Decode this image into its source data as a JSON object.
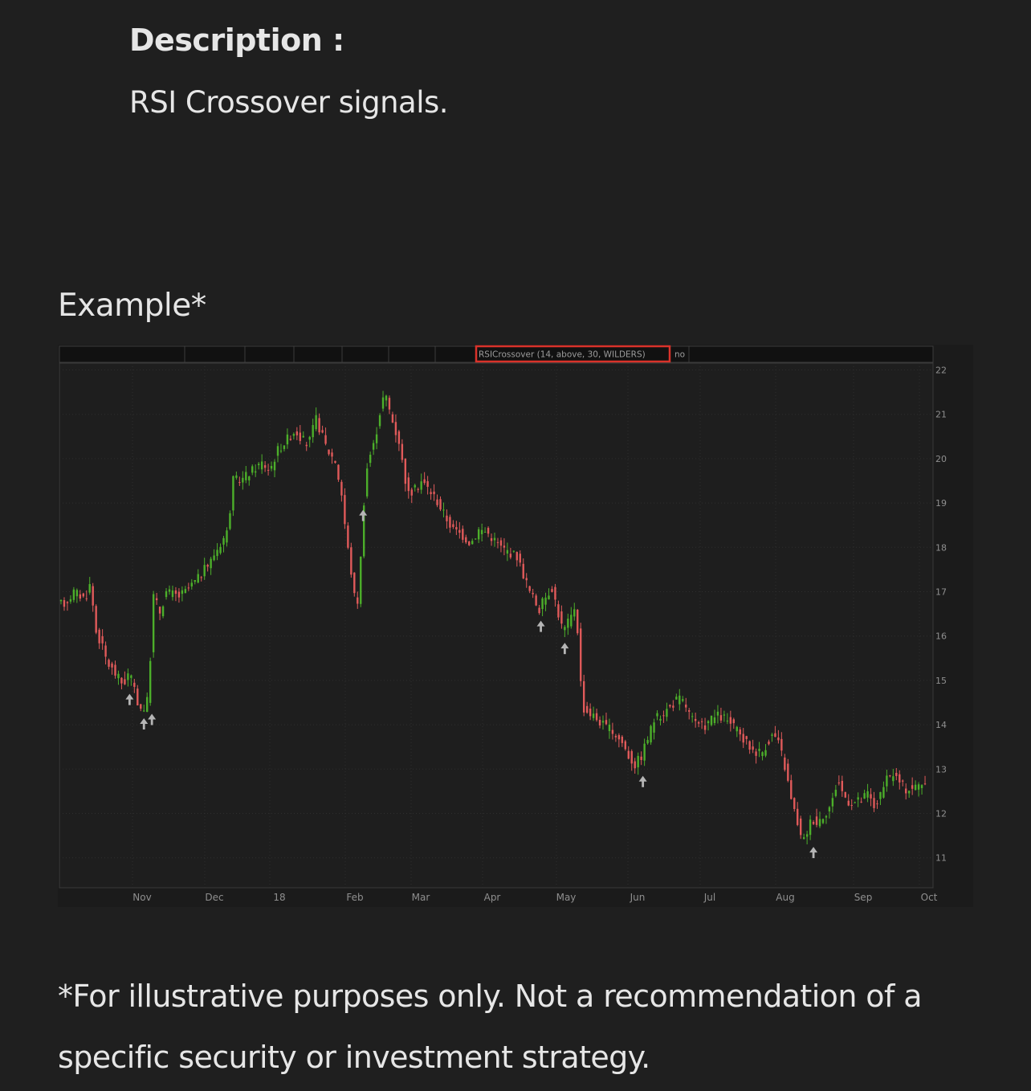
{
  "description": {
    "heading": "Description :",
    "text": "RSI Crossover signals."
  },
  "example": {
    "heading": "Example*"
  },
  "disclaimer": "*For illustrative purposes only. Not a recommendation of a specific security or investment strategy.",
  "chart_data": {
    "type": "candlestick",
    "title": "",
    "study_label": "RSICrossover (14, above, 30, WILDERS)",
    "study_value": "no",
    "x_tick_labels": [
      "Nov",
      "Dec",
      "18",
      "Feb",
      "Mar",
      "Apr",
      "May",
      "Jun",
      "Jul",
      "Aug",
      "Sep",
      "Oct"
    ],
    "y_ticks": [
      22,
      21,
      20,
      19,
      18,
      17,
      16,
      15,
      14,
      13,
      12,
      11
    ],
    "ylim": [
      10.3,
      22.2
    ],
    "grid": true,
    "colors": {
      "up": "#4caf2a",
      "down": "#e05a5a",
      "signal_arrow": "#b5b5b5",
      "study_box": "#d9322a",
      "background": "#1e1e1e"
    },
    "price_path": [
      [
        0,
        16.7
      ],
      [
        10,
        16.75
      ],
      [
        20,
        17.0
      ],
      [
        34,
        16.85
      ],
      [
        40,
        17.15
      ],
      [
        44,
        16.7
      ],
      [
        48,
        16.1
      ],
      [
        55,
        15.8
      ],
      [
        62,
        15.4
      ],
      [
        70,
        15.2
      ],
      [
        82,
        14.9
      ],
      [
        90,
        15.2
      ],
      [
        98,
        14.6
      ],
      [
        106,
        14.3
      ],
      [
        114,
        14.6
      ],
      [
        117,
        16.0
      ],
      [
        120,
        16.9
      ],
      [
        128,
        16.55
      ],
      [
        136,
        17.0
      ],
      [
        144,
        16.95
      ],
      [
        152,
        16.9
      ],
      [
        160,
        17.0
      ],
      [
        168,
        17.15
      ],
      [
        176,
        17.3
      ],
      [
        184,
        17.5
      ],
      [
        192,
        17.7
      ],
      [
        196,
        17.85
      ],
      [
        214,
        18.4
      ],
      [
        217,
        19.1
      ],
      [
        220,
        19.5
      ],
      [
        232,
        19.55
      ],
      [
        248,
        19.8
      ],
      [
        256,
        19.9
      ],
      [
        266,
        19.75
      ],
      [
        276,
        20.2
      ],
      [
        288,
        20.45
      ],
      [
        298,
        20.65
      ],
      [
        306,
        20.45
      ],
      [
        314,
        20.3
      ],
      [
        324,
        20.9
      ],
      [
        332,
        20.5
      ],
      [
        338,
        20.2
      ],
      [
        348,
        19.95
      ],
      [
        356,
        19.2
      ],
      [
        362,
        18.2
      ],
      [
        370,
        17.2
      ],
      [
        374,
        16.6
      ],
      [
        378,
        17.0
      ],
      [
        382,
        18.5
      ],
      [
        386,
        19.6
      ],
      [
        390,
        20.0
      ],
      [
        398,
        20.4
      ],
      [
        402,
        20.9
      ],
      [
        410,
        21.5
      ],
      [
        416,
        21.1
      ],
      [
        422,
        20.7
      ],
      [
        428,
        20.4
      ],
      [
        434,
        19.7
      ],
      [
        440,
        19.2
      ],
      [
        448,
        19.3
      ],
      [
        456,
        19.5
      ],
      [
        466,
        19.3
      ],
      [
        474,
        19.1
      ],
      [
        486,
        18.7
      ],
      [
        496,
        18.4
      ],
      [
        506,
        18.3
      ],
      [
        518,
        18.1
      ],
      [
        528,
        18.4
      ],
      [
        538,
        18.35
      ],
      [
        546,
        18.2
      ],
      [
        556,
        18.0
      ],
      [
        566,
        17.9
      ],
      [
        576,
        17.8
      ],
      [
        584,
        17.4
      ],
      [
        592,
        17.0
      ],
      [
        604,
        16.6
      ],
      [
        612,
        16.9
      ],
      [
        620,
        17.1
      ],
      [
        628,
        16.5
      ],
      [
        634,
        16.1
      ],
      [
        640,
        16.3
      ],
      [
        646,
        16.5
      ],
      [
        650,
        16.8
      ],
      [
        654,
        15.5
      ],
      [
        658,
        14.4
      ],
      [
        664,
        14.3
      ],
      [
        672,
        14.2
      ],
      [
        684,
        14.0
      ],
      [
        696,
        13.85
      ],
      [
        708,
        13.6
      ],
      [
        716,
        13.3
      ],
      [
        724,
        13.1
      ],
      [
        732,
        13.3
      ],
      [
        740,
        13.7
      ],
      [
        748,
        14.1
      ],
      [
        758,
        14.25
      ],
      [
        768,
        14.4
      ],
      [
        778,
        14.6
      ],
      [
        786,
        14.5
      ],
      [
        792,
        14.25
      ],
      [
        800,
        14.0
      ],
      [
        810,
        13.95
      ],
      [
        818,
        14.1
      ],
      [
        826,
        14.2
      ],
      [
        836,
        14.15
      ],
      [
        848,
        13.95
      ],
      [
        858,
        13.7
      ],
      [
        866,
        13.55
      ],
      [
        874,
        13.4
      ],
      [
        884,
        13.4
      ],
      [
        890,
        13.6
      ],
      [
        898,
        13.8
      ],
      [
        906,
        13.5
      ],
      [
        914,
        12.9
      ],
      [
        920,
        12.3
      ],
      [
        928,
        11.8
      ],
      [
        934,
        11.3
      ],
      [
        940,
        11.6
      ],
      [
        946,
        11.9
      ],
      [
        952,
        11.8
      ],
      [
        962,
        12.0
      ],
      [
        970,
        12.2
      ],
      [
        974,
        12.4
      ],
      [
        978,
        12.8
      ],
      [
        984,
        12.5
      ],
      [
        990,
        12.3
      ],
      [
        998,
        12.25
      ],
      [
        1008,
        12.3
      ],
      [
        1016,
        12.45
      ],
      [
        1024,
        12.15
      ],
      [
        1032,
        12.4
      ],
      [
        1040,
        12.75
      ],
      [
        1048,
        12.9
      ],
      [
        1056,
        12.7
      ],
      [
        1064,
        12.55
      ],
      [
        1076,
        12.6
      ],
      [
        1084,
        12.7
      ]
    ],
    "signals": [
      {
        "day": 86,
        "price": 14.95
      },
      {
        "day": 104,
        "price": 14.4
      },
      {
        "day": 114,
        "price": 14.5
      },
      {
        "day": 379,
        "price": 19.1
      },
      {
        "day": 602,
        "price": 16.6
      },
      {
        "day": 632,
        "price": 16.1
      },
      {
        "day": 730,
        "price": 13.1
      },
      {
        "day": 944,
        "price": 11.5
      }
    ]
  }
}
